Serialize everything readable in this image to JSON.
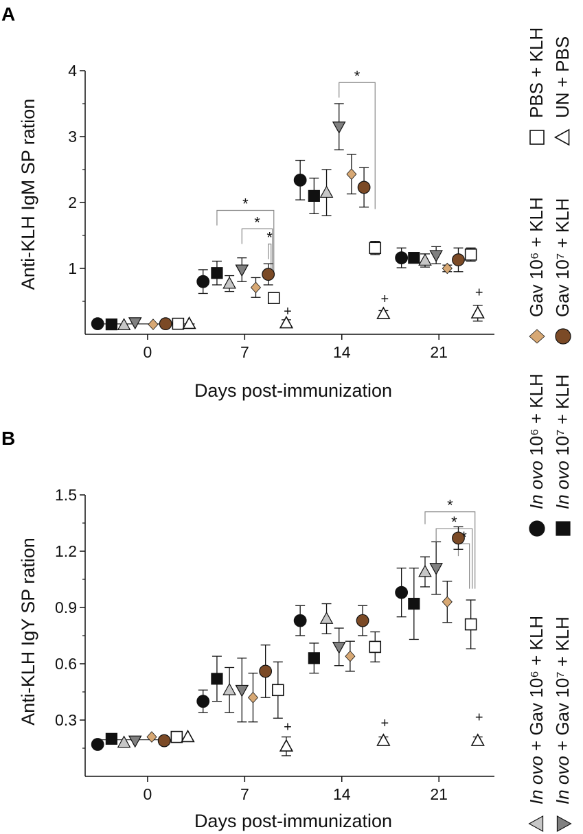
{
  "chart_data": [
    {
      "panel": "A",
      "type": "scatter",
      "xlabel": "Days post-immunization",
      "ylabel": "Anti-KLH IgM SP ration",
      "ylim": [
        0,
        4
      ],
      "yticks": [
        1,
        2,
        3,
        4
      ],
      "xlim": [
        -4.5,
        25
      ],
      "xticks": [
        0,
        7,
        14,
        21
      ],
      "tick_labels_x": [
        "0",
        "7",
        "14",
        "21"
      ],
      "tick_labels_y": [
        "1",
        "2",
        "3",
        "4"
      ],
      "points": [
        {
          "group": "inovo6",
          "x": -3.6,
          "y": 0.16,
          "err": 0
        },
        {
          "group": "inovo7",
          "x": -2.6,
          "y": 0.15,
          "err": 0
        },
        {
          "group": "inovo_gav6",
          "x": -1.7,
          "y": 0.14,
          "err": 0
        },
        {
          "group": "inovo_gav7",
          "x": -0.9,
          "y": 0.18,
          "err": 0
        },
        {
          "group": "gav6",
          "x": 0.4,
          "y": 0.15,
          "err": 0
        },
        {
          "group": "gav7",
          "x": 1.3,
          "y": 0.16,
          "err": 0
        },
        {
          "group": "pbs",
          "x": 2.2,
          "y": 0.16,
          "err": 0
        },
        {
          "group": "un",
          "x": 3.0,
          "y": 0.16,
          "err": 0
        },
        {
          "group": "inovo6",
          "x": 4.0,
          "y": 0.8,
          "err": 0.18
        },
        {
          "group": "inovo7",
          "x": 5.0,
          "y": 0.93,
          "err": 0.18
        },
        {
          "group": "inovo_gav6",
          "x": 5.9,
          "y": 0.77,
          "err": 0.12
        },
        {
          "group": "inovo_gav7",
          "x": 6.8,
          "y": 0.98,
          "err": 0.18
        },
        {
          "group": "gav6",
          "x": 7.8,
          "y": 0.71,
          "err": 0.15
        },
        {
          "group": "gav7",
          "x": 8.7,
          "y": 0.91,
          "err": 0.16
        },
        {
          "group": "pbs",
          "x": 9.1,
          "y": 0.55,
          "err": 0.06
        },
        {
          "group": "un",
          "x": 10.0,
          "y": 0.17,
          "err": 0.05
        },
        {
          "group": "inovo6",
          "x": 11.0,
          "y": 2.34,
          "err": 0.3
        },
        {
          "group": "inovo7",
          "x": 12.0,
          "y": 2.1,
          "err": 0.27
        },
        {
          "group": "inovo_gav6",
          "x": 12.9,
          "y": 2.15,
          "err": 0.35
        },
        {
          "group": "inovo_gav7",
          "x": 13.8,
          "y": 3.15,
          "err": 0.35
        },
        {
          "group": "gav6",
          "x": 14.7,
          "y": 2.43,
          "err": 0.3
        },
        {
          "group": "gav7",
          "x": 15.6,
          "y": 2.23,
          "err": 0.3
        },
        {
          "group": "pbs",
          "x": 16.4,
          "y": 1.31,
          "err": 0.1
        },
        {
          "group": "un",
          "x": 17.0,
          "y": 0.31,
          "err": 0.05
        },
        {
          "group": "inovo6",
          "x": 18.3,
          "y": 1.16,
          "err": 0.15
        },
        {
          "group": "inovo7",
          "x": 19.2,
          "y": 1.16,
          "err": 0.08
        },
        {
          "group": "inovo_gav6",
          "x": 20.0,
          "y": 1.12,
          "err": 0.1
        },
        {
          "group": "inovo_gav7",
          "x": 20.8,
          "y": 1.2,
          "err": 0.13
        },
        {
          "group": "gav6",
          "x": 21.6,
          "y": 1.0,
          "err": 0.05
        },
        {
          "group": "gav7",
          "x": 22.4,
          "y": 1.13,
          "err": 0.18
        },
        {
          "group": "pbs",
          "x": 23.3,
          "y": 1.21,
          "err": 0.1
        },
        {
          "group": "un",
          "x": 23.8,
          "y": 0.32,
          "err": 0.12
        }
      ],
      "brackets": [
        {
          "x1": 13.8,
          "x2": 16.4,
          "y": 3.82,
          "label": "*"
        },
        {
          "x1": 5.0,
          "x2": 9.1,
          "y": 1.88,
          "label": "*"
        },
        {
          "x1": 6.8,
          "x2": 9.0,
          "y": 1.6,
          "label": "*"
        },
        {
          "x1": 8.7,
          "x2": 8.9,
          "y": 1.37,
          "label": "*"
        }
      ],
      "plus_marks": [
        {
          "x": 10.0,
          "y": 0.28
        },
        {
          "x": 17.0,
          "y": 0.47
        },
        {
          "x": 23.8,
          "y": 0.57
        }
      ]
    },
    {
      "panel": "B",
      "type": "scatter",
      "xlabel": "Days post-immunization",
      "ylabel": "Anti-KLH IgY SP ration",
      "ylim": [
        0.0,
        1.5
      ],
      "yticks": [
        0.3,
        0.6,
        0.9,
        1.2,
        1.5
      ],
      "xlim": [
        -4.5,
        25
      ],
      "xticks": [
        0,
        7,
        14,
        21
      ],
      "tick_labels_x": [
        "0",
        "7",
        "14",
        "21"
      ],
      "tick_labels_y": [
        "0.3",
        "0.6",
        "0.9",
        "1.2",
        "1.5"
      ],
      "points": [
        {
          "group": "inovo6",
          "x": -3.6,
          "y": 0.17,
          "err": 0
        },
        {
          "group": "inovo7",
          "x": -2.6,
          "y": 0.2,
          "err": 0
        },
        {
          "group": "inovo_gav6",
          "x": -1.7,
          "y": 0.18,
          "err": 0
        },
        {
          "group": "inovo_gav7",
          "x": -0.9,
          "y": 0.19,
          "err": 0
        },
        {
          "group": "gav6",
          "x": 0.3,
          "y": 0.21,
          "err": 0
        },
        {
          "group": "gav7",
          "x": 1.2,
          "y": 0.19,
          "err": 0
        },
        {
          "group": "pbs",
          "x": 2.1,
          "y": 0.21,
          "err": 0
        },
        {
          "group": "un",
          "x": 2.9,
          "y": 0.21,
          "err": 0
        },
        {
          "group": "inovo6",
          "x": 4.0,
          "y": 0.4,
          "err": 0.06
        },
        {
          "group": "inovo7",
          "x": 5.0,
          "y": 0.52,
          "err": 0.12
        },
        {
          "group": "inovo_gav6",
          "x": 5.9,
          "y": 0.46,
          "err": 0.12
        },
        {
          "group": "inovo_gav7",
          "x": 6.8,
          "y": 0.46,
          "err": 0.17
        },
        {
          "group": "gav6",
          "x": 7.6,
          "y": 0.42,
          "err": 0.13
        },
        {
          "group": "gav7",
          "x": 8.5,
          "y": 0.56,
          "err": 0.14
        },
        {
          "group": "pbs",
          "x": 9.4,
          "y": 0.46,
          "err": 0.15
        },
        {
          "group": "un",
          "x": 10.0,
          "y": 0.16,
          "err": 0.05
        },
        {
          "group": "inovo6",
          "x": 11.0,
          "y": 0.83,
          "err": 0.08
        },
        {
          "group": "inovo7",
          "x": 12.0,
          "y": 0.63,
          "err": 0.08
        },
        {
          "group": "inovo_gav6",
          "x": 12.9,
          "y": 0.84,
          "err": 0.08
        },
        {
          "group": "inovo_gav7",
          "x": 13.8,
          "y": 0.69,
          "err": 0.1
        },
        {
          "group": "gav6",
          "x": 14.6,
          "y": 0.64,
          "err": 0.08
        },
        {
          "group": "gav7",
          "x": 15.5,
          "y": 0.83,
          "err": 0.08
        },
        {
          "group": "pbs",
          "x": 16.4,
          "y": 0.69,
          "err": 0.08
        },
        {
          "group": "un",
          "x": 17.0,
          "y": 0.19,
          "err": 0.02
        },
        {
          "group": "inovo6",
          "x": 18.3,
          "y": 0.98,
          "err": 0.13
        },
        {
          "group": "inovo7",
          "x": 19.2,
          "y": 0.92,
          "err": 0.19
        },
        {
          "group": "inovo_gav6",
          "x": 20.0,
          "y": 1.09,
          "err": 0.08
        },
        {
          "group": "inovo_gav7",
          "x": 20.8,
          "y": 1.11,
          "err": 0.14
        },
        {
          "group": "gav6",
          "x": 21.6,
          "y": 0.93,
          "err": 0.11
        },
        {
          "group": "gav7",
          "x": 22.4,
          "y": 1.27,
          "err": 0.06
        },
        {
          "group": "pbs",
          "x": 23.3,
          "y": 0.81,
          "err": 0.13
        },
        {
          "group": "un",
          "x": 23.8,
          "y": 0.19,
          "err": 0.02
        }
      ],
      "brackets": [
        {
          "x1": 20.0,
          "x2": 23.6,
          "y": 1.41,
          "label": "*"
        },
        {
          "x1": 20.8,
          "x2": 23.4,
          "y": 1.32,
          "label": "*"
        },
        {
          "x1": 22.4,
          "x2": 23.2,
          "y": 1.24,
          "label": "*"
        }
      ],
      "plus_marks": [
        {
          "x": 10.0,
          "y": 0.24
        },
        {
          "x": 17.0,
          "y": 0.26
        },
        {
          "x": 23.8,
          "y": 0.29
        }
      ]
    }
  ],
  "panel_labels": {
    "a": "A",
    "b": "B"
  },
  "legend": [
    {
      "group": "inovo_gav6",
      "marker": "triangle-up",
      "fill": "#c7c7c7",
      "prefix": "In ovo",
      "label": " + Gav 10⁶ + KLH"
    },
    {
      "group": "inovo_gav7",
      "marker": "triangle-down",
      "fill": "#808080",
      "prefix": "In ovo",
      "label": " + Gav 10⁷ + KLH"
    },
    {
      "group": "inovo6",
      "marker": "circle",
      "fill": "#111111",
      "prefix": "In ovo",
      "label": " 10⁶ + KLH"
    },
    {
      "group": "inovo7",
      "marker": "square",
      "fill": "#111111",
      "prefix": "In ovo",
      "label": " 10⁷ + KLH"
    },
    {
      "group": "gav6",
      "marker": "diamond",
      "fill": "#d7a874",
      "prefix": "",
      "label": "Gav 10⁶ + KLH"
    },
    {
      "group": "gav7",
      "marker": "circle",
      "fill": "#7b4a26",
      "prefix": "",
      "label": "Gav 10⁷ + KLH"
    },
    {
      "group": "pbs",
      "marker": "square-open",
      "fill": "#ffffff",
      "prefix": "",
      "label": "PBS + KLH"
    },
    {
      "group": "un",
      "marker": "triangle-open",
      "fill": "#ffffff",
      "prefix": "",
      "label": "UN + PBS"
    }
  ],
  "colors": {
    "inovo6": "#111111",
    "inovo7": "#111111",
    "inovo_gav6": "#c7c7c7",
    "inovo_gav7": "#808080",
    "gav6": "#d7a874",
    "gav7": "#7b4a26",
    "pbs": "#ffffff",
    "un": "#ffffff"
  }
}
